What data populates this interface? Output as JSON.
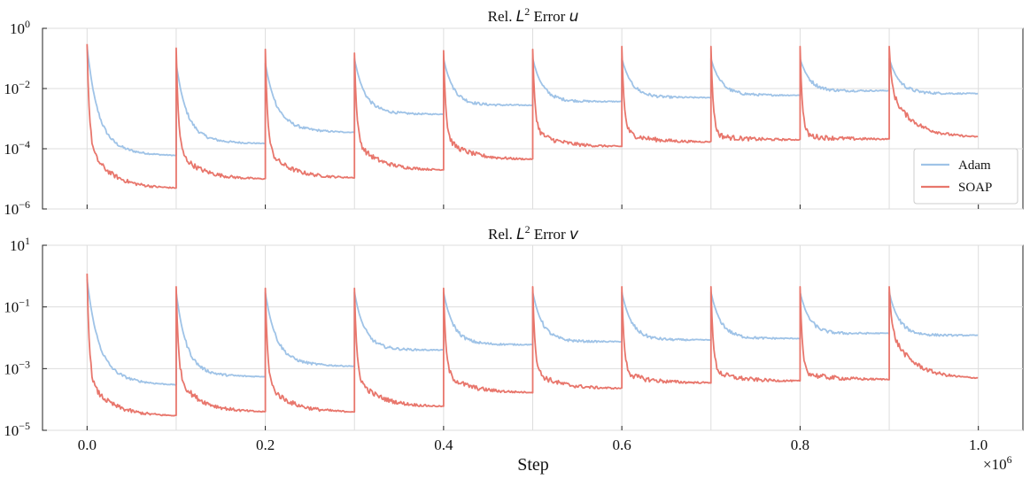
{
  "chart_data": [
    {
      "type": "line",
      "title_prefix": "Rel. ",
      "title_var": "L",
      "title_sup": "2",
      "title_mid": " Error ",
      "title_field": "u",
      "yscale": "log",
      "ylim": [
        1e-06,
        1
      ],
      "ytick_bases": [
        "10",
        "10",
        "10",
        "10"
      ],
      "ytick_exponents": [
        "0",
        "−2",
        "−4",
        "−6"
      ],
      "ytick_values": [
        1,
        0.01,
        0.0001,
        1e-06
      ],
      "xlim": [
        -0.05,
        1.05
      ],
      "grid": true,
      "legend_position": "right",
      "series": [
        {
          "name": "Adam",
          "color": "#9fc3e7",
          "segments": [
            {
              "start": 0.0,
              "end": 0.1,
              "p0": 0.25,
              "pm": 0.0003,
              "pf": 6e-05
            },
            {
              "start": 0.1,
              "end": 0.2,
              "p0": 0.07,
              "pm": 0.00035,
              "pf": 0.00015
            },
            {
              "start": 0.2,
              "end": 0.3,
              "p0": 0.07,
              "pm": 0.001,
              "pf": 0.00035
            },
            {
              "start": 0.3,
              "end": 0.4,
              "p0": 0.1,
              "pm": 0.002,
              "pf": 0.0014
            },
            {
              "start": 0.4,
              "end": 0.5,
              "p0": 0.1,
              "pm": 0.003,
              "pf": 0.0028
            },
            {
              "start": 0.5,
              "end": 0.6,
              "p0": 0.1,
              "pm": 0.004,
              "pf": 0.0037
            },
            {
              "start": 0.6,
              "end": 0.7,
              "p0": 0.1,
              "pm": 0.0055,
              "pf": 0.005
            },
            {
              "start": 0.7,
              "end": 0.8,
              "p0": 0.1,
              "pm": 0.0065,
              "pf": 0.006
            },
            {
              "start": 0.8,
              "end": 0.9,
              "p0": 0.1,
              "pm": 0.0075,
              "pf": 0.0085
            },
            {
              "start": 0.9,
              "end": 1.0,
              "p0": 0.1,
              "pm": 0.0075,
              "pf": 0.0068
            }
          ]
        },
        {
          "name": "SOAP",
          "color": "#e8766c",
          "segments": [
            {
              "start": 0.0,
              "end": 0.1,
              "p0": 0.3,
              "pm": 0.00015,
              "pf": 5e-06
            },
            {
              "start": 0.1,
              "end": 0.2,
              "p0": 0.22,
              "pm": 0.0001,
              "pf": 1e-05
            },
            {
              "start": 0.2,
              "end": 0.3,
              "p0": 0.2,
              "pm": 0.00011,
              "pf": 1.1e-05
            },
            {
              "start": 0.3,
              "end": 0.4,
              "p0": 0.15,
              "pm": 0.0002,
              "pf": 2e-05
            },
            {
              "start": 0.4,
              "end": 0.5,
              "p0": 0.18,
              "pm": 0.00025,
              "pf": 4.5e-05
            },
            {
              "start": 0.5,
              "end": 0.6,
              "p0": 0.2,
              "pm": 0.00045,
              "pf": 0.00012
            },
            {
              "start": 0.6,
              "end": 0.7,
              "p0": 0.25,
              "pm": 0.0004,
              "pf": 0.00017
            },
            {
              "start": 0.7,
              "end": 0.8,
              "p0": 0.25,
              "pm": 0.0003,
              "pf": 0.0002
            },
            {
              "start": 0.8,
              "end": 0.9,
              "p0": 0.25,
              "pm": 0.0003,
              "pf": 0.00021
            },
            {
              "start": 0.9,
              "end": 1.0,
              "p0": 0.25,
              "pm": 0.01,
              "pf": 0.00025
            }
          ]
        }
      ]
    },
    {
      "type": "line",
      "title_prefix": "Rel. ",
      "title_var": "L",
      "title_sup": "2",
      "title_mid": " Error ",
      "title_field": "v",
      "yscale": "log",
      "ylim": [
        1e-05,
        10
      ],
      "ytick_bases": [
        "10",
        "10",
        "10",
        "10"
      ],
      "ytick_exponents": [
        "1",
        "−1",
        "−3",
        "−5"
      ],
      "ytick_values": [
        10,
        0.1,
        0.001,
        1e-05
      ],
      "xlim": [
        -0.05,
        1.05
      ],
      "grid": true,
      "series": [
        {
          "name": "Adam",
          "color": "#9fc3e7",
          "segments": [
            {
              "start": 0.0,
              "end": 0.1,
              "p0": 0.8,
              "pm": 0.002,
              "pf": 0.0003
            },
            {
              "start": 0.1,
              "end": 0.2,
              "p0": 0.3,
              "pm": 0.001,
              "pf": 0.00055
            },
            {
              "start": 0.2,
              "end": 0.3,
              "p0": 0.3,
              "pm": 0.003,
              "pf": 0.0012
            },
            {
              "start": 0.3,
              "end": 0.4,
              "p0": 0.3,
              "pm": 0.005,
              "pf": 0.004
            },
            {
              "start": 0.4,
              "end": 0.5,
              "p0": 0.3,
              "pm": 0.007,
              "pf": 0.006
            },
            {
              "start": 0.5,
              "end": 0.6,
              "p0": 0.3,
              "pm": 0.008,
              "pf": 0.0075
            },
            {
              "start": 0.6,
              "end": 0.7,
              "p0": 0.3,
              "pm": 0.009,
              "pf": 0.0085
            },
            {
              "start": 0.7,
              "end": 0.8,
              "p0": 0.3,
              "pm": 0.01,
              "pf": 0.0095
            },
            {
              "start": 0.8,
              "end": 0.9,
              "p0": 0.3,
              "pm": 0.012,
              "pf": 0.014
            },
            {
              "start": 0.9,
              "end": 1.0,
              "p0": 0.3,
              "pm": 0.012,
              "pf": 0.012
            }
          ]
        },
        {
          "name": "SOAP",
          "color": "#e8766c",
          "segments": [
            {
              "start": 0.0,
              "end": 0.1,
              "p0": 1.2,
              "pm": 0.0005,
              "pf": 3e-05
            },
            {
              "start": 0.1,
              "end": 0.2,
              "p0": 0.45,
              "pm": 0.0006,
              "pf": 4e-05
            },
            {
              "start": 0.2,
              "end": 0.3,
              "p0": 0.4,
              "pm": 0.0004,
              "pf": 4e-05
            },
            {
              "start": 0.3,
              "end": 0.4,
              "p0": 0.4,
              "pm": 0.0006,
              "pf": 6e-05
            },
            {
              "start": 0.4,
              "end": 0.5,
              "p0": 0.4,
              "pm": 0.0008,
              "pf": 0.00017
            },
            {
              "start": 0.5,
              "end": 0.6,
              "p0": 0.45,
              "pm": 0.0009,
              "pf": 0.00023
            },
            {
              "start": 0.6,
              "end": 0.7,
              "p0": 0.45,
              "pm": 0.0008,
              "pf": 0.00035
            },
            {
              "start": 0.7,
              "end": 0.8,
              "p0": 0.45,
              "pm": 0.0009,
              "pf": 0.0004
            },
            {
              "start": 0.8,
              "end": 0.9,
              "p0": 0.45,
              "pm": 0.0008,
              "pf": 0.00045
            },
            {
              "start": 0.9,
              "end": 1.0,
              "p0": 0.45,
              "pm": 0.02,
              "pf": 0.0005
            }
          ]
        }
      ]
    }
  ],
  "xaxis": {
    "label": "Step",
    "ticks": [
      "0.0",
      "0.2",
      "0.4",
      "0.6",
      "0.8",
      "1.0"
    ],
    "tick_values": [
      0,
      0.2,
      0.4,
      0.6,
      0.8,
      1.0
    ],
    "offset_base": "×10",
    "offset_exponent": "6"
  },
  "legend": [
    {
      "label": "Adam",
      "color": "#9fc3e7"
    },
    {
      "label": "SOAP",
      "color": "#e8766c"
    }
  ]
}
